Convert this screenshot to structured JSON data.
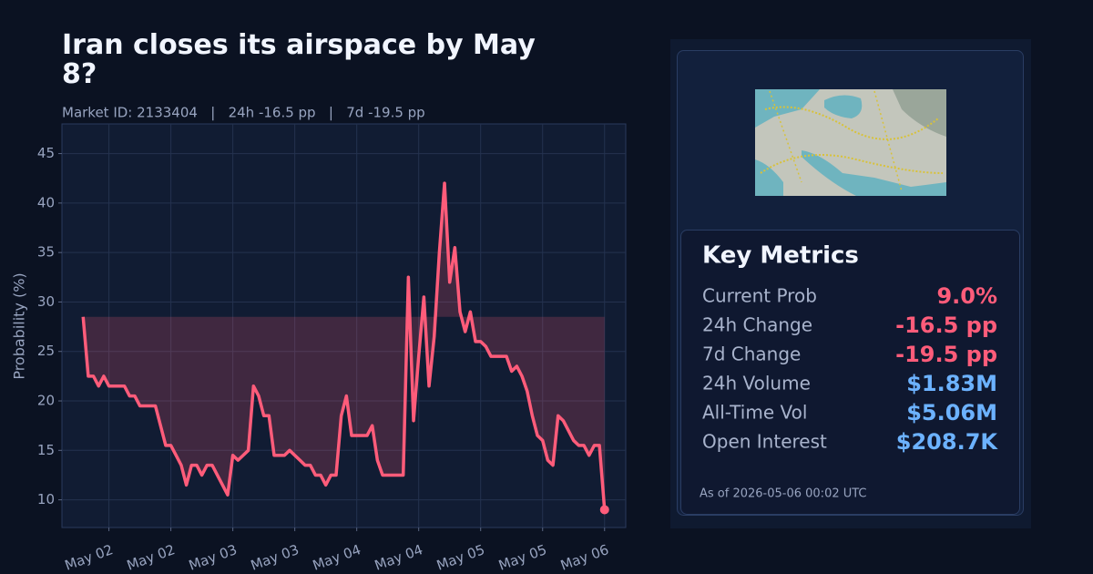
{
  "chart_data": {
    "type": "line",
    "title": "Iran closes its airspace by May 8?",
    "subtitle": "Market ID: 2133404   |   24h -16.5 pp   |   7d -19.5 pp",
    "y_label": "Probability (%)",
    "categories": [
      null,
      null,
      null,
      null,
      null,
      null,
      null,
      null,
      null,
      null,
      null,
      null,
      null,
      null,
      null,
      null,
      null,
      null,
      null,
      null,
      null,
      null,
      null,
      null,
      null,
      null,
      null,
      null,
      null,
      null,
      null,
      null,
      null,
      null,
      null,
      null,
      null,
      null,
      null,
      null,
      null,
      null,
      null,
      null,
      null,
      null,
      null,
      null,
      null,
      null,
      null,
      null,
      null,
      null,
      null,
      null,
      null,
      null,
      null,
      null,
      null,
      null,
      null,
      null,
      null,
      null,
      null,
      null,
      null,
      null,
      null,
      null,
      null,
      null,
      null,
      null,
      null,
      null,
      null,
      null,
      null,
      null,
      null,
      null,
      null,
      null,
      null,
      null,
      null,
      null,
      null,
      null,
      null,
      null,
      null,
      null,
      null,
      null,
      null,
      null,
      null,
      null
    ],
    "series": [
      {
        "color": "#ff5c7a",
        "values": [
          28.5,
          22.5,
          22.5,
          21.5,
          22.5,
          21.5,
          21.5,
          21.5,
          21.5,
          20.5,
          20.5,
          19.5,
          19.5,
          19.5,
          19.5,
          17.5,
          15.5,
          15.5,
          14.5,
          13.5,
          11.5,
          13.5,
          13.5,
          12.5,
          13.5,
          13.5,
          12.5,
          11.5,
          10.5,
          14.5,
          14.0,
          14.5,
          15.0,
          21.5,
          20.5,
          18.5,
          18.5,
          14.5,
          14.5,
          14.5,
          15.0,
          14.5,
          14.0,
          13.5,
          13.5,
          12.5,
          12.5,
          11.5,
          12.5,
          12.5,
          18.5,
          20.5,
          16.5,
          16.5,
          16.5,
          16.5,
          17.5,
          14.0,
          12.5,
          12.5,
          12.5,
          12.5,
          12.5,
          32.5,
          18.0,
          24.5,
          30.5,
          21.5,
          26.5,
          35.0,
          42.0,
          32.0,
          35.5,
          29.0,
          27.0,
          29.0,
          26.0,
          26.0,
          25.5,
          24.5,
          24.5,
          24.5,
          24.5,
          23.0,
          23.5,
          22.5,
          21.0,
          18.5,
          16.5,
          16.0,
          14.0,
          13.5,
          18.5,
          18.0,
          17.0,
          16.0,
          15.5,
          15.5,
          14.5,
          15.5,
          15.5,
          9.0
        ]
      }
    ],
    "xlim": [
      -4.1,
      105.1
    ],
    "xticks": [
      {
        "value": 5,
        "label": "May 02"
      },
      {
        "value": 17,
        "label": "May 02"
      },
      {
        "value": 29,
        "label": "May 03"
      },
      {
        "value": 41,
        "label": "May 03"
      },
      {
        "value": 53,
        "label": "May 04"
      },
      {
        "value": 65,
        "label": "May 04"
      },
      {
        "value": 77,
        "label": "May 05"
      },
      {
        "value": 89,
        "label": "May 05"
      },
      {
        "value": 101,
        "label": "May 06"
      }
    ],
    "ylim": [
      7.2,
      48
    ],
    "yticks": [
      10,
      15,
      20,
      25,
      30,
      35,
      40,
      45
    ],
    "grid": true,
    "fill": true
  },
  "panel": {
    "title": "Key Metrics",
    "metrics": [
      {
        "label": "Current Prob",
        "value": "9.0%",
        "color": "#ff5c7a"
      },
      {
        "label": "24h Change",
        "value": "-16.5 pp",
        "color": "#ff5c7a"
      },
      {
        "label": "7d Change",
        "value": "-19.5 pp",
        "color": "#ff5c7a"
      },
      {
        "label": "24h Volume",
        "value": "$1.83M",
        "color": "#6cb2ff"
      },
      {
        "label": "All-Time Vol",
        "value": "$5.06M",
        "color": "#6cb2ff"
      },
      {
        "label": "Open Interest",
        "value": "$208.7K",
        "color": "#6cb2ff"
      }
    ],
    "footer": "As of 2026-05-06 00:02 UTC"
  }
}
